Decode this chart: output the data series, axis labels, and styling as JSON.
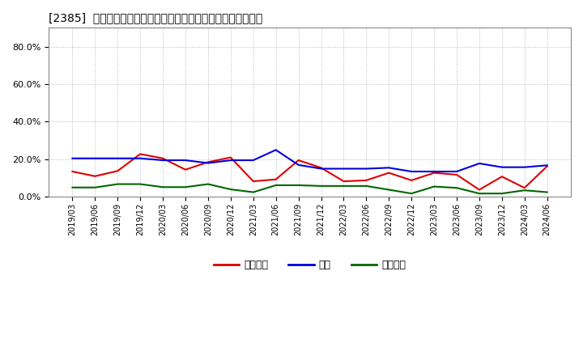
{
  "title": "[2385]  売上債権、在庫、買入債務の総資産に対する比率の推移",
  "x_labels": [
    "2019/03",
    "2019/06",
    "2019/09",
    "2019/12",
    "2020/03",
    "2020/06",
    "2020/09",
    "2020/12",
    "2021/03",
    "2021/06",
    "2021/09",
    "2021/12",
    "2022/03",
    "2022/06",
    "2022/09",
    "2022/12",
    "2023/03",
    "2023/06",
    "2023/09",
    "2023/12",
    "2024/03",
    "2024/06"
  ],
  "series": {
    "売上債権": {
      "color": "#dd0000",
      "values": [
        0.135,
        0.11,
        0.138,
        0.228,
        0.205,
        0.145,
        0.185,
        0.21,
        0.083,
        0.093,
        0.195,
        0.155,
        0.083,
        0.088,
        0.128,
        0.088,
        0.128,
        0.118,
        0.038,
        0.108,
        0.048,
        0.163
      ]
    },
    "在庫": {
      "color": "#0000dd",
      "values": [
        0.205,
        0.205,
        0.205,
        0.205,
        0.195,
        0.195,
        0.18,
        0.195,
        0.195,
        0.25,
        0.17,
        0.15,
        0.15,
        0.15,
        0.155,
        0.135,
        0.135,
        0.135,
        0.178,
        0.158,
        0.158,
        0.168
      ]
    },
    "買入債務": {
      "color": "#006600",
      "values": [
        0.05,
        0.05,
        0.068,
        0.068,
        0.052,
        0.052,
        0.068,
        0.04,
        0.025,
        0.062,
        0.062,
        0.058,
        0.058,
        0.058,
        0.038,
        0.018,
        0.055,
        0.048,
        0.018,
        0.018,
        0.035,
        0.025
      ]
    }
  },
  "ylim": [
    0.0,
    0.9
  ],
  "yticks": [
    0.0,
    0.2,
    0.4,
    0.6,
    0.8
  ],
  "background_color": "#ffffff",
  "plot_bg_color": "#ffffff",
  "grid_color": "#999999",
  "legend_labels": [
    "売上債権",
    "在庫",
    "買入債務"
  ],
  "legend_colors": [
    "#dd0000",
    "#0000dd",
    "#006600"
  ]
}
